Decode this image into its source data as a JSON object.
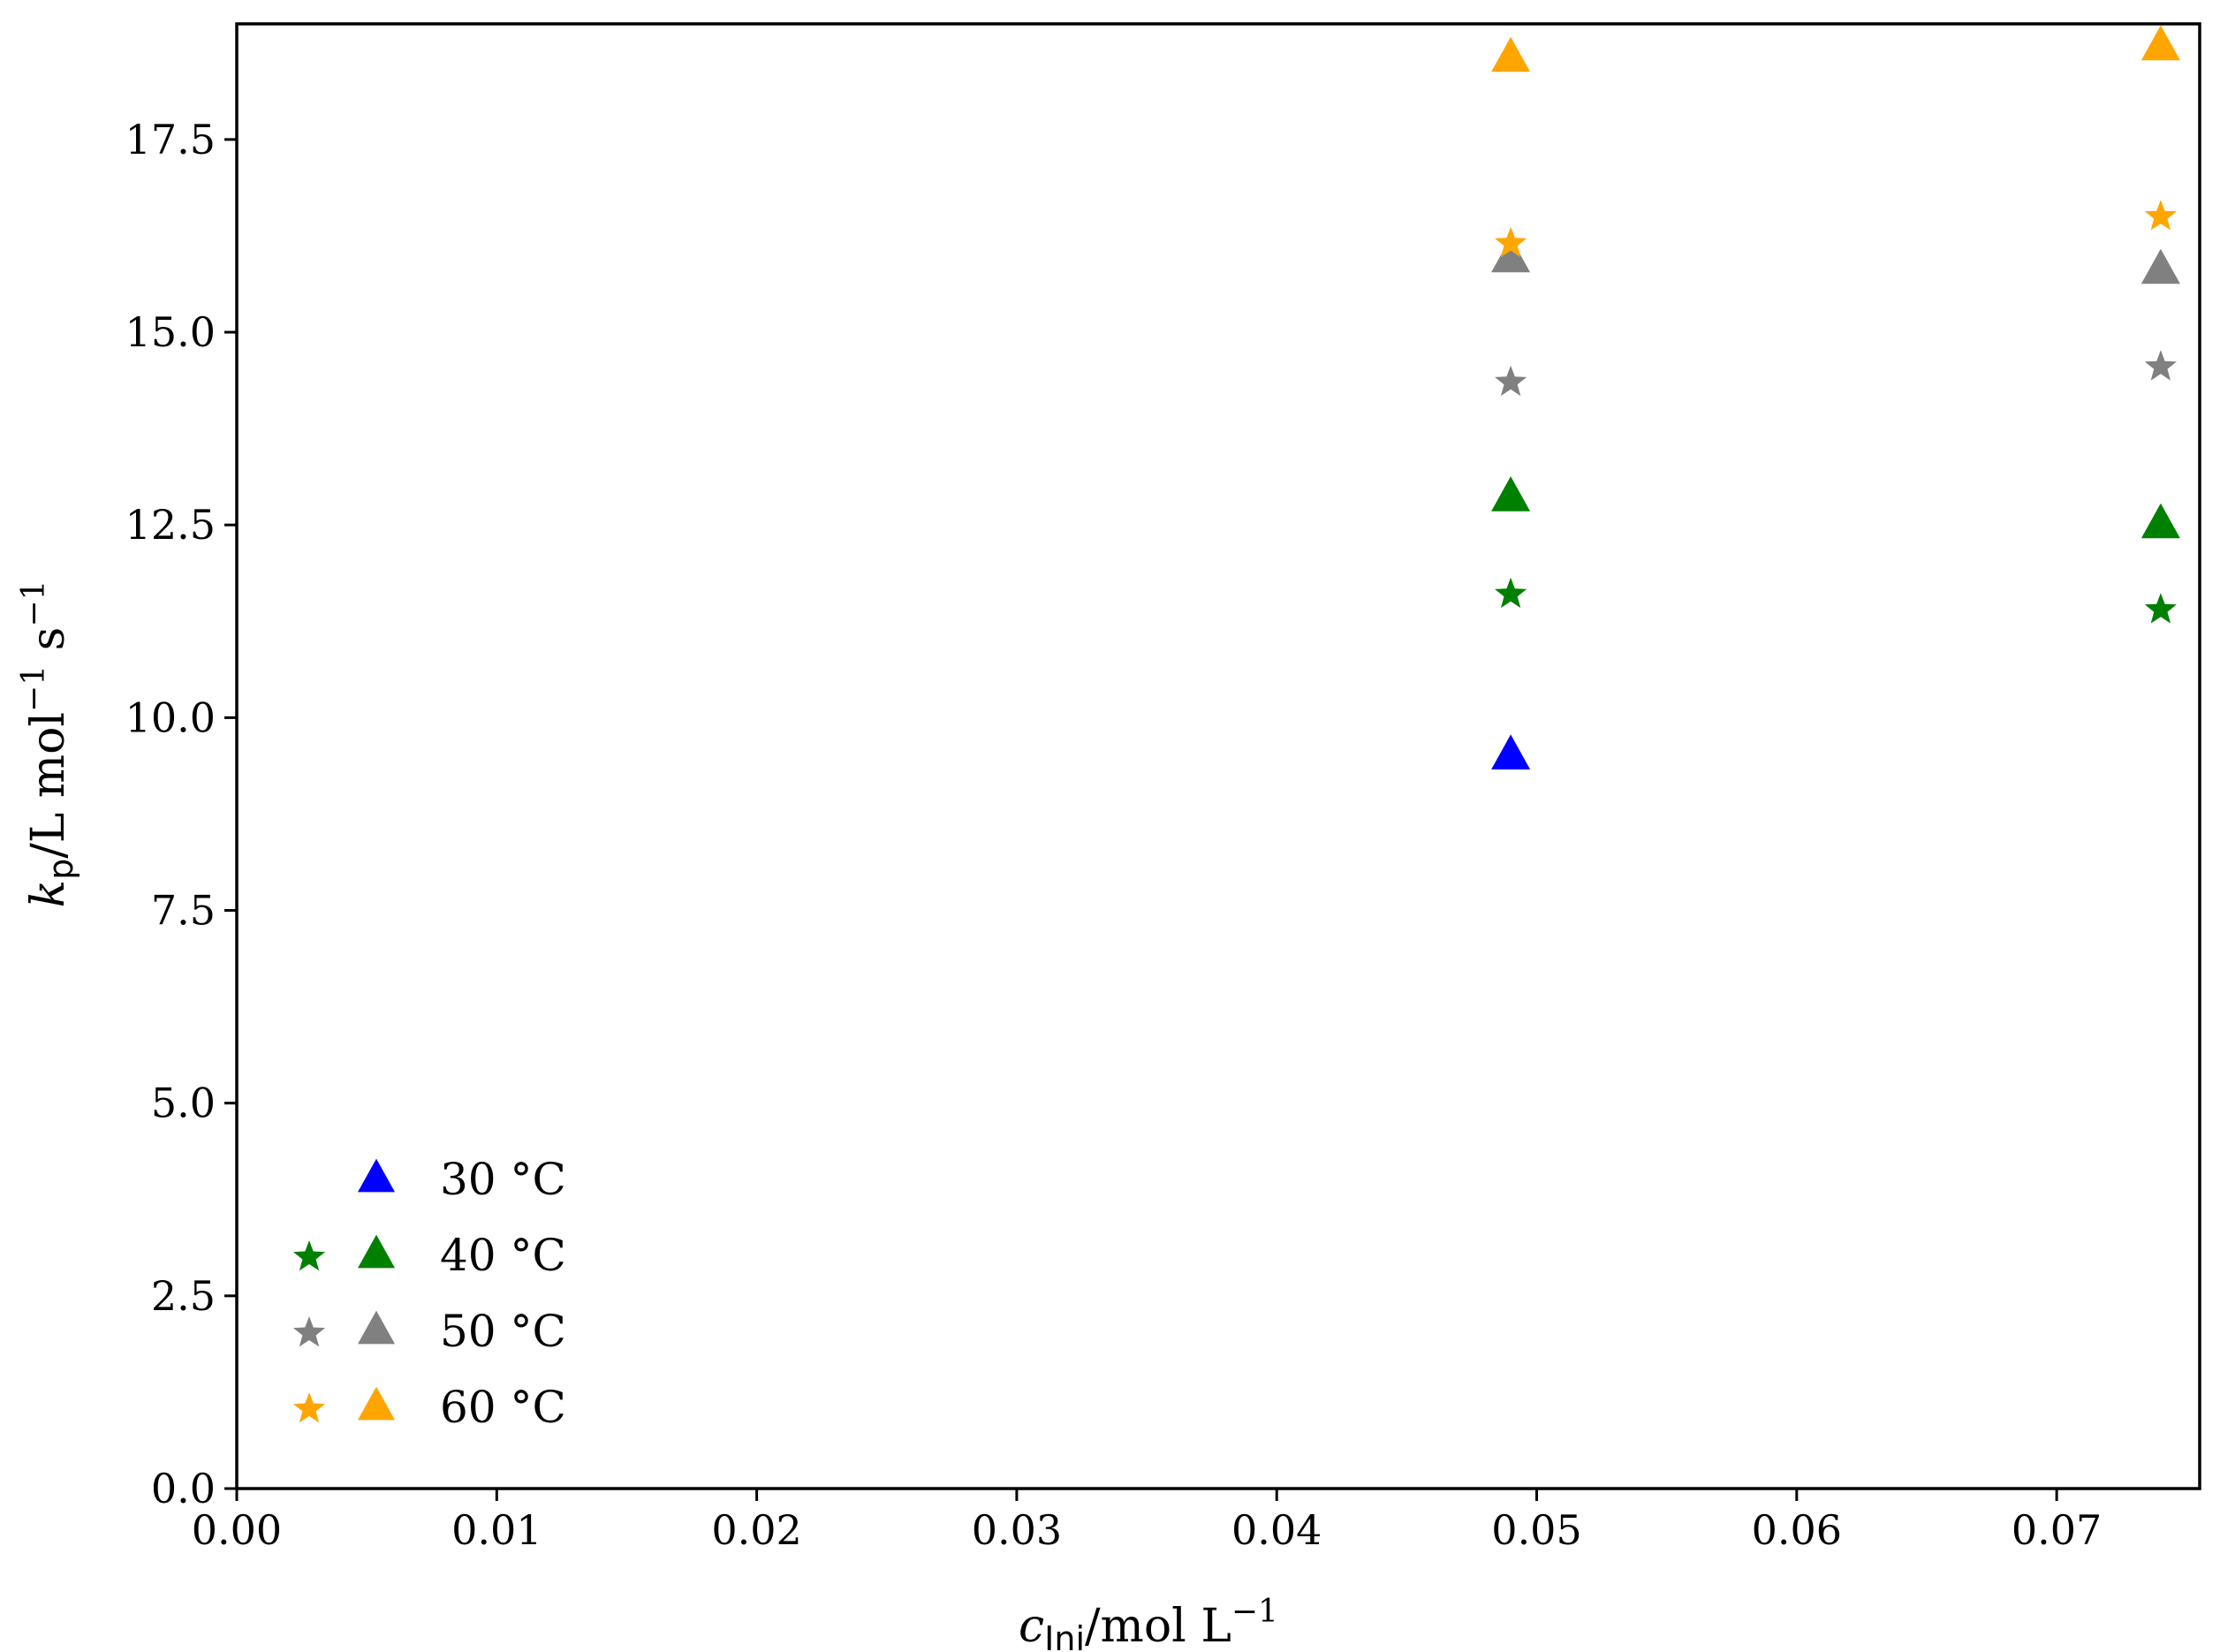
{
  "chart_data": {
    "type": "scatter",
    "xlabel": {
      "main": "c",
      "sub": "Ini",
      "rest": "/mol L",
      "sup": "−1"
    },
    "ylabel": {
      "main": "k",
      "sub": "p",
      "rest": "/L mol",
      "sup1": "−1",
      "mid": " s",
      "sup2": "−1"
    },
    "xlim": [
      0.0,
      0.0755
    ],
    "ylim": [
      0.0,
      19.0
    ],
    "xticks": [
      0.0,
      0.01,
      0.02,
      0.03,
      0.04,
      0.05,
      0.06,
      0.07
    ],
    "xtick_labels": [
      "0.00",
      "0.01",
      "0.02",
      "0.03",
      "0.04",
      "0.05",
      "0.06",
      "0.07"
    ],
    "yticks": [
      0.0,
      2.5,
      5.0,
      7.5,
      10.0,
      12.5,
      15.0,
      17.5
    ],
    "ytick_labels": [
      "0.0",
      "2.5",
      "5.0",
      "7.5",
      "10.0",
      "12.5",
      "15.0",
      "17.5"
    ],
    "grid": false,
    "legend_position": "lower-left",
    "series": [
      {
        "name": "30 °C",
        "color": "#0000ff",
        "star_points": [],
        "triangle_points": [
          [
            0.049,
            9.5
          ]
        ]
      },
      {
        "name": "40 °C",
        "color": "#008000",
        "star_points": [
          [
            0.049,
            11.6
          ],
          [
            0.074,
            11.4
          ]
        ],
        "triangle_points": [
          [
            0.049,
            12.85
          ],
          [
            0.074,
            12.5
          ]
        ]
      },
      {
        "name": "50 °C",
        "color": "#808080",
        "star_points": [
          [
            0.049,
            14.35
          ],
          [
            0.074,
            14.55
          ]
        ],
        "triangle_points": [
          [
            0.049,
            15.95
          ],
          [
            0.074,
            15.8
          ]
        ]
      },
      {
        "name": "60 °C",
        "color": "#ffa500",
        "star_points": [
          [
            0.049,
            16.15
          ],
          [
            0.074,
            16.5
          ]
        ],
        "triangle_points": [
          [
            0.049,
            18.55
          ],
          [
            0.074,
            18.7
          ]
        ]
      }
    ]
  }
}
